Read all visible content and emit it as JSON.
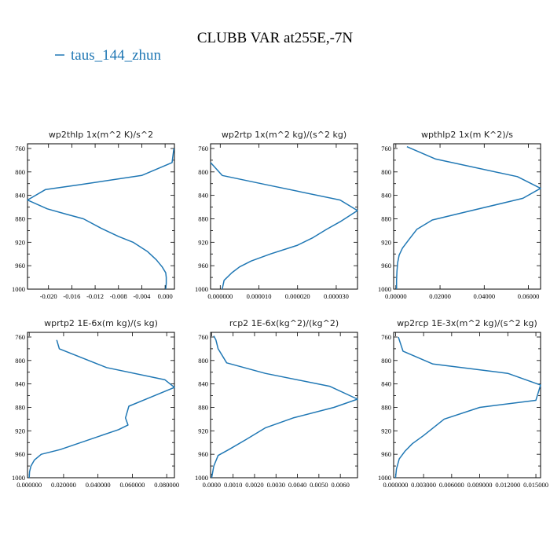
{
  "figure": {
    "title": "CLUBB VAR at255E,-7N",
    "legend_label": "taus_144_zhun",
    "line_color": "#1f77b4"
  },
  "chart_data": [
    {
      "type": "line",
      "title": "wp2thlp  1x(m^2 K)/s^2",
      "ylim": [
        1000,
        752
      ],
      "y_ticks": [
        760,
        800,
        840,
        880,
        920,
        960,
        1000
      ],
      "xlim": [
        -0.0236,
        0.0016
      ],
      "x_ticks": [
        -0.02,
        -0.016,
        -0.012,
        -0.008,
        -0.004,
        0.0
      ],
      "x_tick_labels": [
        "-0.020",
        "-0.016",
        "-0.012",
        "-0.008",
        "-0.004",
        "0.000"
      ],
      "series": [
        {
          "x": [
            0.0001,
            0.0002,
            0.0002,
            0.0001,
            -0.0005,
            -0.0015,
            -0.003,
            -0.0055,
            -0.008,
            -0.011,
            -0.014,
            -0.017,
            -0.0202,
            -0.0236,
            -0.0205,
            -0.0148,
            -0.004,
            0.0012,
            0.0015
          ],
          "y": [
            1000,
            990,
            980,
            972,
            962,
            950,
            936,
            920,
            910,
            896,
            880,
            872,
            863,
            848,
            830,
            822,
            806,
            784,
            760
          ]
        }
      ]
    },
    {
      "type": "line",
      "title": "wp2rtp  1x(m^2 kg)/(s^2 kg)",
      "ylim": [
        1000,
        752
      ],
      "y_ticks": [
        760,
        800,
        840,
        880,
        920,
        960,
        1000
      ],
      "xlim": [
        -2.5e-06,
        3.55e-05
      ],
      "x_ticks": [
        0.0,
        1e-05,
        2e-05,
        3e-05
      ],
      "x_tick_labels": [
        "0.000000",
        "0.000010",
        "0.000020",
        "0.000030"
      ],
      "series": [
        {
          "x": [
            5e-07,
            1e-06,
            3e-06,
            5e-06,
            8e-06,
            1.3e-05,
            2e-05,
            2.4e-05,
            2.75e-05,
            3.1e-05,
            3.55e-05,
            3.1e-05,
            1.2e-05,
            5e-07,
            -2.5e-06
          ],
          "y": [
            1000,
            985,
            972,
            962,
            952,
            940,
            925,
            912,
            898,
            885,
            866,
            848,
            822,
            806,
            784
          ]
        }
      ]
    },
    {
      "type": "line",
      "title": "wpthlp2  1x(m K^2)/s",
      "ylim": [
        1000,
        752
      ],
      "y_ticks": [
        760,
        800,
        840,
        880,
        920,
        960,
        1000
      ],
      "xlim": [
        -0.001,
        0.0655
      ],
      "x_ticks": [
        0.0,
        0.02,
        0.04,
        0.06
      ],
      "x_tick_labels": [
        "0.00000",
        "0.02000",
        "0.04000",
        "0.06000"
      ],
      "series": [
        {
          "x": [
            0.0003,
            0.0003,
            0.0005,
            0.0008,
            0.0015,
            0.003,
            0.006,
            0.0095,
            0.0165,
            0.032,
            0.0575,
            0.0655,
            0.055,
            0.018,
            0.005
          ],
          "y": [
            1000,
            985,
            970,
            955,
            942,
            930,
            915,
            898,
            882,
            868,
            845,
            828,
            808,
            778,
            757
          ]
        }
      ]
    },
    {
      "type": "line",
      "title": "wprtp2  1E-6x(m kg)/(s kg)",
      "ylim": [
        1000,
        752
      ],
      "y_ticks": [
        760,
        800,
        840,
        880,
        920,
        960,
        1000
      ],
      "xlim": [
        -0.001,
        0.0845
      ],
      "x_ticks": [
        0.0,
        0.02,
        0.04,
        0.06,
        0.08
      ],
      "x_tick_labels": [
        "0.000000",
        "0.020000",
        "0.040000",
        "0.060000",
        "0.080000"
      ],
      "series": [
        {
          "x": [
            0.0,
            0.0002,
            0.001,
            0.003,
            0.007,
            0.018,
            0.052,
            0.0575,
            0.056,
            0.058,
            0.0845,
            0.079,
            0.045,
            0.0175,
            0.016
          ],
          "y": [
            1000,
            990,
            980,
            970,
            960,
            952,
            918,
            910,
            898,
            878,
            846,
            833,
            812,
            780,
            765
          ]
        }
      ]
    },
    {
      "type": "line",
      "title": "rcp2  1E-6x(kg^2)/(kg^2)",
      "ylim": [
        1000,
        752
      ],
      "y_ticks": [
        760,
        800,
        840,
        880,
        920,
        960,
        1000
      ],
      "xlim": [
        -5e-05,
        0.0068
      ],
      "x_ticks": [
        0.0,
        0.001,
        0.002,
        0.003,
        0.004,
        0.005,
        0.006
      ],
      "x_tick_labels": [
        "0.0000",
        "0.0010",
        "0.0020",
        "0.0030",
        "0.0040",
        "0.0050",
        "0.0060"
      ],
      "series": [
        {
          "x": [
            0.0,
            0.0001,
            0.0003,
            0.0008,
            0.0016,
            0.0025,
            0.0038,
            0.0057,
            0.0068,
            0.0055,
            0.0025,
            0.0007,
            0.0003,
            0.0002,
            0.0001
          ],
          "y": [
            1000,
            980,
            962,
            952,
            935,
            915,
            898,
            880,
            866,
            844,
            822,
            804,
            780,
            765,
            758
          ]
        }
      ]
    },
    {
      "type": "line",
      "title": "wp2rcp  1E-3x(m^2 kg)/(s^2 kg)",
      "ylim": [
        1000,
        752
      ],
      "y_ticks": [
        760,
        800,
        840,
        880,
        920,
        960,
        1000
      ],
      "xlim": [
        -0.0002,
        0.0155
      ],
      "x_ticks": [
        0.0,
        0.003,
        0.006,
        0.009,
        0.012,
        0.015
      ],
      "x_tick_labels": [
        "0.000000",
        "0.003000",
        "0.006000",
        "0.009000",
        "0.012000",
        "0.015000"
      ],
      "series": [
        {
          "x": [
            0.0,
            0.0001,
            0.0004,
            0.001,
            0.0018,
            0.003,
            0.0052,
            0.009,
            0.015,
            0.0155,
            0.012,
            0.004,
            0.0008,
            0.0003
          ],
          "y": [
            1000,
            985,
            968,
            955,
            942,
            928,
            900,
            880,
            868,
            842,
            822,
            806,
            784,
            760
          ]
        }
      ]
    }
  ]
}
